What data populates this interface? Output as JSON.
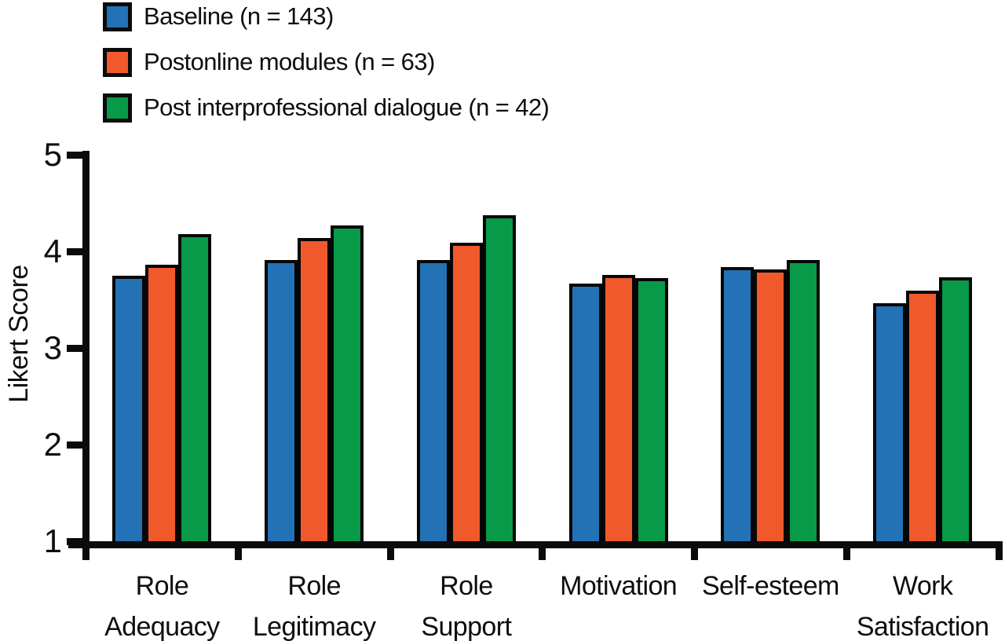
{
  "figure": {
    "background": "#ffffff"
  },
  "legend": {
    "position": "top-left",
    "items": [
      {
        "name": "baseline",
        "label": "Baseline (n = 143)",
        "color": "#2272B5"
      },
      {
        "name": "postonline-modules",
        "label": "Postonline modules (n = 63)",
        "color": "#F0592B"
      },
      {
        "name": "post-interprofessional-dialogue",
        "label": "Post interprofessional dialogue (n = 42)",
        "color": "#089A48"
      }
    ]
  },
  "chart_data": {
    "type": "bar",
    "title": "",
    "xlabel": "",
    "ylabel": "Likert Score",
    "ylim": [
      1,
      5
    ],
    "yticks": [
      1,
      2,
      3,
      4,
      5
    ],
    "grid": false,
    "legend_position": "top-left",
    "axis_color": "#0b0b0b",
    "bar_border_color": "#060606",
    "categories": [
      "Role Adequacy",
      "Role Legitimacy",
      "Role Support",
      "Motivation",
      "Self-esteem",
      "Work Satisfaction"
    ],
    "category_lines": [
      [
        "Role",
        "Adequacy"
      ],
      [
        "Role",
        "Legitimacy"
      ],
      [
        "Role",
        "Support"
      ],
      [
        "Motivation"
      ],
      [
        "Self-esteem"
      ],
      [
        "Work",
        "Satisfaction"
      ]
    ],
    "series": [
      {
        "name": "Baseline (n = 143)",
        "color": "#2272B5",
        "values": [
          3.75,
          3.91,
          3.91,
          3.67,
          3.84,
          3.46
        ]
      },
      {
        "name": "Postonline modules (n = 63)",
        "color": "#F0592B",
        "values": [
          3.86,
          4.14,
          4.09,
          3.76,
          3.81,
          3.59
        ]
      },
      {
        "name": "Post interprofessional dialogue (n = 42)",
        "color": "#089A48",
        "values": [
          4.18,
          4.27,
          4.37,
          3.72,
          3.91,
          3.73
        ]
      }
    ]
  }
}
